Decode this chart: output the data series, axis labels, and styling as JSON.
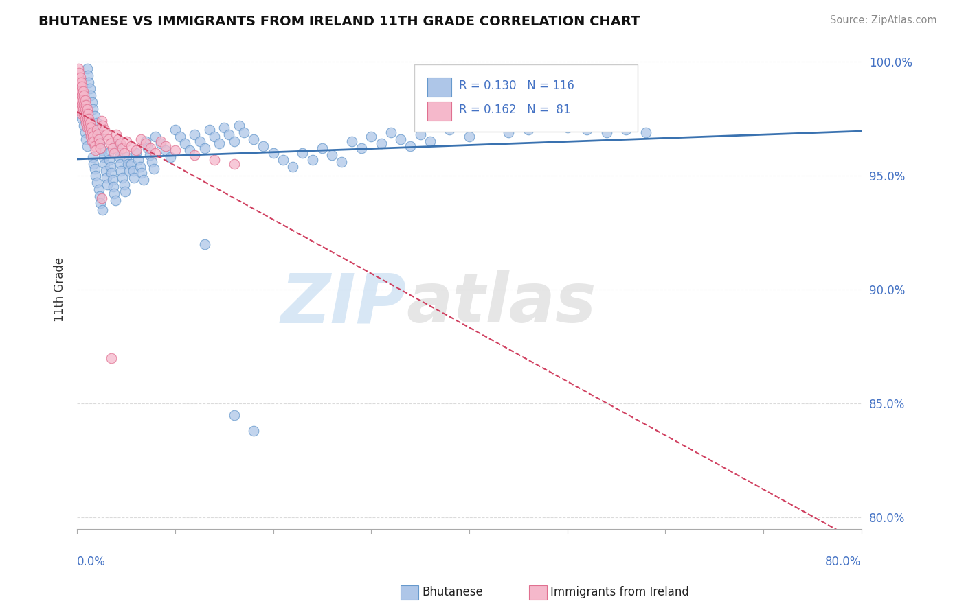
{
  "title": "BHUTANESE VS IMMIGRANTS FROM IRELAND 11TH GRADE CORRELATION CHART",
  "source": "Source: ZipAtlas.com",
  "ylabel": "11th Grade",
  "yaxis_labels": [
    "80.0%",
    "85.0%",
    "90.0%",
    "95.0%",
    "100.0%"
  ],
  "yaxis_values": [
    0.8,
    0.85,
    0.9,
    0.95,
    1.0
  ],
  "xmin": 0.0,
  "xmax": 0.8,
  "ymin": 0.795,
  "ymax": 1.005,
  "blue_color": "#aec6e8",
  "blue_edge": "#6699cc",
  "pink_color": "#f5b8cb",
  "pink_edge": "#e07090",
  "trend_blue": "#3a72b0",
  "trend_pink": "#d04060",
  "legend_R_blue": "R = 0.130",
  "legend_N_blue": "N = 116",
  "legend_R_pink": "R = 0.162",
  "legend_N_pink": "N =  81",
  "legend_color": "#4472c4",
  "watermark_zip": "ZIP",
  "watermark_atlas": "atlas",
  "blue_scatter_x": [
    0.005,
    0.007,
    0.008,
    0.009,
    0.01,
    0.01,
    0.011,
    0.012,
    0.013,
    0.014,
    0.015,
    0.016,
    0.016,
    0.017,
    0.018,
    0.018,
    0.019,
    0.02,
    0.02,
    0.021,
    0.022,
    0.022,
    0.023,
    0.023,
    0.024,
    0.025,
    0.026,
    0.027,
    0.028,
    0.029,
    0.03,
    0.031,
    0.032,
    0.033,
    0.034,
    0.035,
    0.036,
    0.037,
    0.038,
    0.039,
    0.04,
    0.042,
    0.043,
    0.044,
    0.045,
    0.046,
    0.048,
    0.049,
    0.05,
    0.052,
    0.053,
    0.055,
    0.057,
    0.058,
    0.06,
    0.062,
    0.064,
    0.066,
    0.068,
    0.07,
    0.072,
    0.074,
    0.076,
    0.078,
    0.08,
    0.085,
    0.09,
    0.095,
    0.1,
    0.105,
    0.11,
    0.115,
    0.12,
    0.125,
    0.13,
    0.135,
    0.14,
    0.145,
    0.15,
    0.155,
    0.16,
    0.165,
    0.17,
    0.18,
    0.19,
    0.2,
    0.21,
    0.22,
    0.23,
    0.24,
    0.25,
    0.26,
    0.27,
    0.28,
    0.29,
    0.3,
    0.31,
    0.32,
    0.33,
    0.34,
    0.35,
    0.36,
    0.38,
    0.4,
    0.42,
    0.44,
    0.46,
    0.48,
    0.5,
    0.52,
    0.54,
    0.56,
    0.58,
    0.13,
    0.16,
    0.18
  ],
  "blue_scatter_y": [
    0.975,
    0.972,
    0.969,
    0.966,
    0.963,
    0.997,
    0.994,
    0.991,
    0.988,
    0.985,
    0.982,
    0.979,
    0.958,
    0.955,
    0.976,
    0.953,
    0.95,
    0.973,
    0.947,
    0.97,
    0.944,
    0.967,
    0.941,
    0.964,
    0.938,
    0.961,
    0.935,
    0.958,
    0.955,
    0.952,
    0.949,
    0.946,
    0.96,
    0.957,
    0.954,
    0.951,
    0.948,
    0.945,
    0.942,
    0.939,
    0.964,
    0.961,
    0.958,
    0.955,
    0.952,
    0.949,
    0.946,
    0.943,
    0.958,
    0.955,
    0.952,
    0.955,
    0.952,
    0.949,
    0.96,
    0.957,
    0.954,
    0.951,
    0.948,
    0.965,
    0.962,
    0.959,
    0.956,
    0.953,
    0.967,
    0.964,
    0.961,
    0.958,
    0.97,
    0.967,
    0.964,
    0.961,
    0.968,
    0.965,
    0.962,
    0.97,
    0.967,
    0.964,
    0.971,
    0.968,
    0.965,
    0.972,
    0.969,
    0.966,
    0.963,
    0.96,
    0.957,
    0.954,
    0.96,
    0.957,
    0.962,
    0.959,
    0.956,
    0.965,
    0.962,
    0.967,
    0.964,
    0.969,
    0.966,
    0.963,
    0.968,
    0.965,
    0.97,
    0.967,
    0.972,
    0.969,
    0.97,
    0.972,
    0.971,
    0.97,
    0.969,
    0.97,
    0.969,
    0.92,
    0.845,
    0.838
  ],
  "pink_scatter_x": [
    0.001,
    0.001,
    0.001,
    0.002,
    0.002,
    0.002,
    0.002,
    0.003,
    0.003,
    0.003,
    0.003,
    0.004,
    0.004,
    0.004,
    0.004,
    0.005,
    0.005,
    0.005,
    0.005,
    0.006,
    0.006,
    0.006,
    0.007,
    0.007,
    0.007,
    0.008,
    0.008,
    0.008,
    0.009,
    0.009,
    0.009,
    0.01,
    0.01,
    0.01,
    0.011,
    0.011,
    0.012,
    0.012,
    0.013,
    0.013,
    0.014,
    0.014,
    0.015,
    0.015,
    0.016,
    0.017,
    0.018,
    0.019,
    0.02,
    0.021,
    0.022,
    0.023,
    0.024,
    0.025,
    0.026,
    0.028,
    0.03,
    0.032,
    0.034,
    0.036,
    0.038,
    0.04,
    0.042,
    0.044,
    0.046,
    0.048,
    0.05,
    0.055,
    0.06,
    0.065,
    0.07,
    0.075,
    0.08,
    0.085,
    0.09,
    0.1,
    0.12,
    0.14,
    0.16,
    0.025,
    0.035
  ],
  "pink_scatter_y": [
    0.997,
    0.993,
    0.989,
    0.995,
    0.991,
    0.987,
    0.983,
    0.993,
    0.989,
    0.985,
    0.981,
    0.991,
    0.987,
    0.983,
    0.979,
    0.989,
    0.985,
    0.981,
    0.977,
    0.987,
    0.983,
    0.979,
    0.985,
    0.981,
    0.977,
    0.983,
    0.979,
    0.975,
    0.981,
    0.977,
    0.973,
    0.979,
    0.975,
    0.971,
    0.977,
    0.973,
    0.975,
    0.971,
    0.973,
    0.969,
    0.971,
    0.967,
    0.969,
    0.965,
    0.967,
    0.965,
    0.963,
    0.961,
    0.97,
    0.968,
    0.966,
    0.964,
    0.962,
    0.974,
    0.972,
    0.97,
    0.968,
    0.966,
    0.964,
    0.962,
    0.96,
    0.968,
    0.966,
    0.964,
    0.962,
    0.96,
    0.965,
    0.963,
    0.961,
    0.966,
    0.964,
    0.962,
    0.96,
    0.965,
    0.963,
    0.961,
    0.959,
    0.957,
    0.955,
    0.94,
    0.87
  ]
}
